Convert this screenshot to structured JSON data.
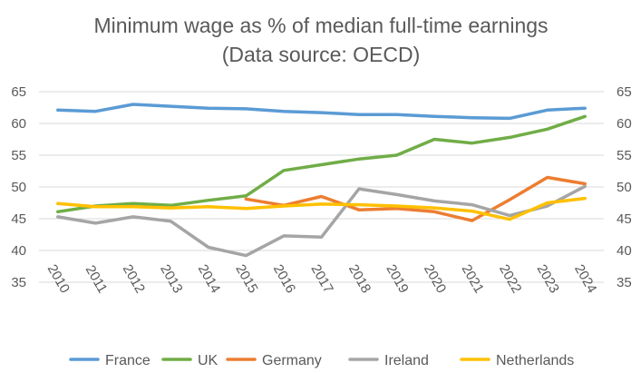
{
  "chart_data": {
    "type": "line",
    "title": "Minimum wage as % of median full-time earnings",
    "subtitle": "(Data source: OECD)",
    "xlabel": "",
    "ylabel": "",
    "categories": [
      "2010",
      "2011",
      "2012",
      "2013",
      "2014",
      "2015",
      "2016",
      "2017",
      "2018",
      "2019",
      "2020",
      "2021",
      "2022",
      "2023",
      "2024"
    ],
    "ylim": [
      35,
      65
    ],
    "yticks": [
      35,
      40,
      45,
      50,
      55,
      60,
      65
    ],
    "ytick_labels": [
      "35",
      "40",
      "45",
      "50",
      "55",
      "60",
      "65"
    ],
    "grid": true,
    "secondary_axis_right": true,
    "legend_position": "bottom",
    "series": [
      {
        "name": "France",
        "color": "#5B9BD5",
        "values": [
          62.1,
          61.9,
          63.0,
          62.7,
          62.4,
          62.3,
          61.9,
          61.7,
          61.4,
          61.4,
          61.1,
          60.9,
          60.8,
          62.1,
          62.4
        ]
      },
      {
        "name": "UK",
        "color": "#70AD47",
        "values": [
          46.1,
          47.0,
          47.4,
          47.1,
          47.9,
          48.6,
          52.6,
          53.5,
          54.4,
          55.0,
          57.5,
          56.9,
          57.8,
          59.1,
          61.1
        ]
      },
      {
        "name": "Germany",
        "color": "#ED7D31",
        "values": [
          null,
          null,
          null,
          null,
          null,
          48.1,
          47.1,
          48.5,
          46.4,
          46.6,
          46.1,
          44.7,
          48.0,
          51.5,
          50.5
        ]
      },
      {
        "name": "Ireland",
        "color": "#A5A5A5",
        "values": [
          45.3,
          44.3,
          45.3,
          44.6,
          40.5,
          39.2,
          42.3,
          42.1,
          49.7,
          48.8,
          47.8,
          47.2,
          45.5,
          47.0,
          50.1
        ]
      },
      {
        "name": "Netherlands",
        "color": "#FFC000",
        "values": [
          47.4,
          46.9,
          46.9,
          46.7,
          46.9,
          46.6,
          47.0,
          47.3,
          47.2,
          47.0,
          46.7,
          46.2,
          44.9,
          47.5,
          48.2
        ]
      }
    ]
  }
}
